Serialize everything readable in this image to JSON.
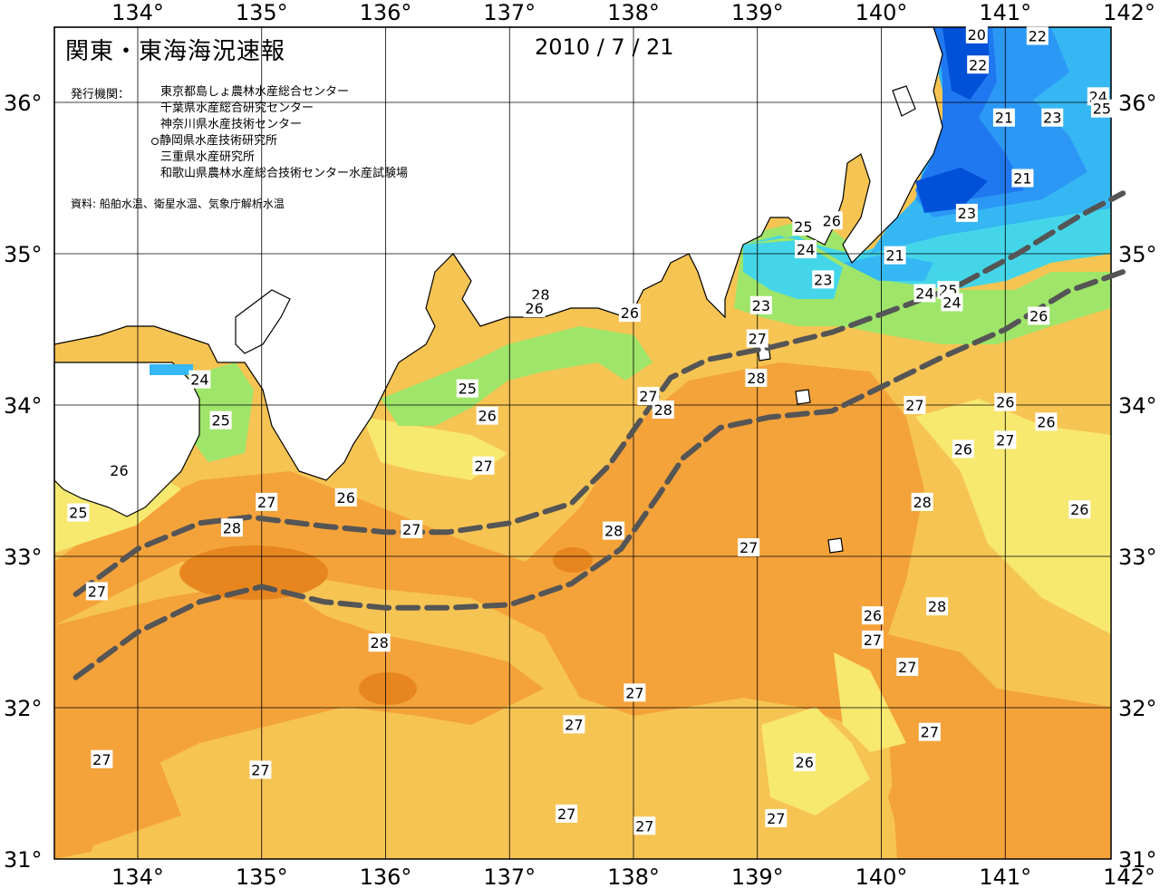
{
  "header": {
    "title": "関東・東海海況速報",
    "date": "2010 / 7 / 21"
  },
  "publishers": {
    "label": "発行機関：",
    "items": [
      {
        "name": "東京都島しょ農林水産総合センター",
        "marked": false
      },
      {
        "name": "千葉県水産総合研究センター",
        "marked": false
      },
      {
        "name": "神奈川県水産技術センター",
        "marked": false
      },
      {
        "name": "静岡県水産技術研究所",
        "marked": true
      },
      {
        "name": "三重県水産研究所",
        "marked": false
      },
      {
        "name": "和歌山県農林水産総合技術センター水産試験場",
        "marked": false
      }
    ]
  },
  "source": "資料: 船舶水温、衛星水温、気象庁解析水温",
  "axes": {
    "lon_ticks": [
      "134°",
      "135°",
      "136°",
      "137°",
      "138°",
      "139°",
      "140°",
      "141°",
      "142°"
    ],
    "lat_ticks": [
      "31°",
      "32°",
      "33°",
      "34°",
      "35°",
      "36°"
    ]
  },
  "colors": {
    "t20": "#0050d8",
    "t21": "#1f78f0",
    "t22": "#2c98f5",
    "t23": "#35b7f4",
    "t24": "#44d6e8",
    "t25": "#9ee56a",
    "t26": "#f7e870",
    "t27": "#f6c453",
    "t28": "#f4a23a",
    "t29": "#e7861f",
    "t30": "#d66d12",
    "land": "#ffffff",
    "kuroshio": "#555555"
  },
  "contour_labels": [
    {
      "text": "20",
      "lon": 140.77,
      "lat": 36.45
    },
    {
      "text": "22",
      "lon": 141.26,
      "lat": 36.44
    },
    {
      "text": "22",
      "lon": 140.78,
      "lat": 36.25
    },
    {
      "text": "24",
      "lon": 141.75,
      "lat": 36.04
    },
    {
      "text": "25",
      "lon": 141.78,
      "lat": 35.96
    },
    {
      "text": "21",
      "lon": 140.99,
      "lat": 35.9
    },
    {
      "text": "23",
      "lon": 141.38,
      "lat": 35.9
    },
    {
      "text": "21",
      "lon": 141.14,
      "lat": 35.5
    },
    {
      "text": "23",
      "lon": 140.69,
      "lat": 35.27
    },
    {
      "text": "25",
      "lon": 139.37,
      "lat": 35.18
    },
    {
      "text": "26",
      "lon": 139.6,
      "lat": 35.22
    },
    {
      "text": "24",
      "lon": 139.39,
      "lat": 35.03
    },
    {
      "text": "21",
      "lon": 140.11,
      "lat": 34.99
    },
    {
      "text": "23",
      "lon": 139.53,
      "lat": 34.83
    },
    {
      "text": "24",
      "lon": 140.35,
      "lat": 34.74
    },
    {
      "text": "25",
      "lon": 140.54,
      "lat": 34.76
    },
    {
      "text": "24",
      "lon": 140.57,
      "lat": 34.68
    },
    {
      "text": "28",
      "lon": 137.25,
      "lat": 34.73
    },
    {
      "text": "26",
      "lon": 137.2,
      "lat": 34.64
    },
    {
      "text": "23",
      "lon": 139.03,
      "lat": 34.66
    },
    {
      "text": "26",
      "lon": 137.97,
      "lat": 34.61
    },
    {
      "text": "26",
      "lon": 141.27,
      "lat": 34.59
    },
    {
      "text": "27",
      "lon": 139.0,
      "lat": 34.44
    },
    {
      "text": "24",
      "lon": 134.5,
      "lat": 34.17
    },
    {
      "text": "28",
      "lon": 138.99,
      "lat": 34.18
    },
    {
      "text": "25",
      "lon": 136.66,
      "lat": 34.11
    },
    {
      "text": "27",
      "lon": 138.12,
      "lat": 34.06
    },
    {
      "text": "28",
      "lon": 138.24,
      "lat": 33.97
    },
    {
      "text": "27",
      "lon": 140.27,
      "lat": 34.0
    },
    {
      "text": "26",
      "lon": 141.0,
      "lat": 34.02
    },
    {
      "text": "25",
      "lon": 134.67,
      "lat": 33.9
    },
    {
      "text": "26",
      "lon": 136.82,
      "lat": 33.93
    },
    {
      "text": "26",
      "lon": 141.33,
      "lat": 33.89
    },
    {
      "text": "27",
      "lon": 141.0,
      "lat": 33.77
    },
    {
      "text": "26",
      "lon": 140.66,
      "lat": 33.71
    },
    {
      "text": "27",
      "lon": 136.79,
      "lat": 33.6
    },
    {
      "text": "26",
      "lon": 133.85,
      "lat": 33.57
    },
    {
      "text": "27",
      "lon": 135.04,
      "lat": 33.36
    },
    {
      "text": "26",
      "lon": 135.68,
      "lat": 33.39
    },
    {
      "text": "28",
      "lon": 140.33,
      "lat": 33.36
    },
    {
      "text": "26",
      "lon": 141.6,
      "lat": 33.31
    },
    {
      "text": "25",
      "lon": 133.52,
      "lat": 33.29
    },
    {
      "text": "28",
      "lon": 134.76,
      "lat": 33.19
    },
    {
      "text": "27",
      "lon": 136.21,
      "lat": 33.18
    },
    {
      "text": "28",
      "lon": 137.84,
      "lat": 33.17
    },
    {
      "text": "27",
      "lon": 138.93,
      "lat": 33.06
    },
    {
      "text": "27",
      "lon": 133.67,
      "lat": 32.77
    },
    {
      "text": "28",
      "lon": 140.45,
      "lat": 32.67
    },
    {
      "text": "26",
      "lon": 139.93,
      "lat": 32.61
    },
    {
      "text": "28",
      "lon": 135.95,
      "lat": 32.43
    },
    {
      "text": "27",
      "lon": 139.93,
      "lat": 32.45
    },
    {
      "text": "27",
      "lon": 140.21,
      "lat": 32.27
    },
    {
      "text": "27",
      "lon": 138.01,
      "lat": 32.1
    },
    {
      "text": "27",
      "lon": 137.52,
      "lat": 31.89
    },
    {
      "text": "27",
      "lon": 140.39,
      "lat": 31.84
    },
    {
      "text": "27",
      "lon": 133.71,
      "lat": 31.66
    },
    {
      "text": "27",
      "lon": 134.99,
      "lat": 31.59
    },
    {
      "text": "26",
      "lon": 139.38,
      "lat": 31.64
    },
    {
      "text": "27",
      "lon": 137.46,
      "lat": 31.3
    },
    {
      "text": "27",
      "lon": 138.09,
      "lat": 31.22
    },
    {
      "text": "27",
      "lon": 139.15,
      "lat": 31.27
    }
  ],
  "kuroshio_paths": [
    [
      [
        133.5,
        32.2
      ],
      [
        134.0,
        32.5
      ],
      [
        134.5,
        32.7
      ],
      [
        135.0,
        32.8
      ],
      [
        135.5,
        32.7
      ],
      [
        136.0,
        32.66
      ],
      [
        136.5,
        32.66
      ],
      [
        137.0,
        32.68
      ],
      [
        137.5,
        32.82
      ],
      [
        137.9,
        33.05
      ],
      [
        138.2,
        33.4
      ],
      [
        138.4,
        33.65
      ],
      [
        138.7,
        33.85
      ],
      [
        139.1,
        33.92
      ],
      [
        139.6,
        33.96
      ],
      [
        140.0,
        34.12
      ],
      [
        140.5,
        34.32
      ],
      [
        141.0,
        34.5
      ],
      [
        141.5,
        34.75
      ],
      [
        141.95,
        34.88
      ]
    ],
    [
      [
        133.5,
        32.75
      ],
      [
        134.0,
        33.05
      ],
      [
        134.5,
        33.22
      ],
      [
        134.9,
        33.26
      ],
      [
        135.5,
        33.2
      ],
      [
        136.0,
        33.16
      ],
      [
        136.5,
        33.16
      ],
      [
        137.0,
        33.22
      ],
      [
        137.5,
        33.35
      ],
      [
        137.8,
        33.6
      ],
      [
        138.1,
        33.95
      ],
      [
        138.3,
        34.18
      ],
      [
        138.6,
        34.3
      ],
      [
        139.1,
        34.38
      ],
      [
        139.6,
        34.48
      ],
      [
        140.0,
        34.6
      ],
      [
        140.6,
        34.78
      ],
      [
        141.1,
        35.0
      ],
      [
        141.6,
        35.25
      ],
      [
        141.95,
        35.4
      ]
    ]
  ]
}
